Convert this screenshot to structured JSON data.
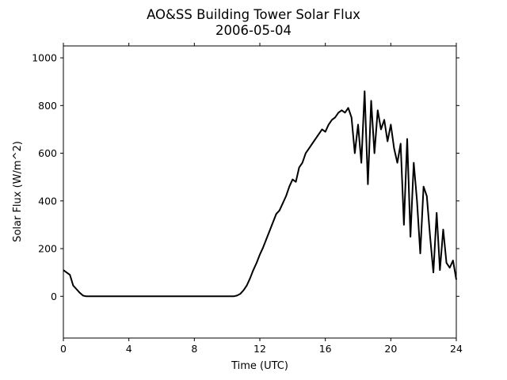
{
  "chart_data": {
    "type": "line",
    "title": "AO&SS Building Tower Solar Flux",
    "subtitle": "2006-05-04",
    "xlabel": "Time (UTC)",
    "ylabel": "Solar Flux (W/m^2)",
    "xlim": [
      0,
      24
    ],
    "xticks": [
      0,
      4,
      8,
      12,
      16,
      20,
      24
    ],
    "ylim": [
      -175,
      1050
    ],
    "yticks": [
      0,
      200,
      400,
      600,
      800,
      1000
    ],
    "grid": false,
    "series": [
      {
        "name": "Solar Flux",
        "color": "#000000",
        "x": [
          0,
          0.2,
          0.4,
          0.6,
          0.8,
          1.0,
          1.2,
          1.4,
          2,
          4,
          6,
          8,
          10,
          10.4,
          10.6,
          10.8,
          11,
          11.2,
          11.4,
          11.6,
          11.8,
          12,
          12.2,
          12.4,
          12.6,
          12.8,
          13,
          13.2,
          13.4,
          13.6,
          13.8,
          14,
          14.2,
          14.4,
          14.6,
          14.8,
          15,
          15.2,
          15.4,
          15.6,
          15.8,
          16,
          16.2,
          16.4,
          16.6,
          16.8,
          17,
          17.2,
          17.4,
          17.6,
          17.8,
          18,
          18.2,
          18.4,
          18.6,
          18.8,
          19,
          19.2,
          19.4,
          19.6,
          19.8,
          20,
          20.2,
          20.4,
          20.6,
          20.8,
          21,
          21.2,
          21.4,
          21.6,
          21.8,
          22,
          22.2,
          22.4,
          22.6,
          22.8,
          23,
          23.2,
          23.4,
          23.6,
          23.8,
          24
        ],
        "values": [
          110,
          100,
          90,
          45,
          30,
          15,
          3,
          0,
          0,
          0,
          0,
          0,
          0,
          0,
          3,
          10,
          25,
          45,
          75,
          110,
          140,
          175,
          205,
          240,
          275,
          310,
          345,
          360,
          390,
          420,
          460,
          490,
          480,
          540,
          560,
          600,
          620,
          640,
          660,
          680,
          700,
          690,
          720,
          740,
          750,
          770,
          780,
          770,
          790,
          750,
          600,
          720,
          560,
          860,
          470,
          820,
          600,
          780,
          700,
          740,
          650,
          720,
          620,
          560,
          640,
          300,
          660,
          250,
          560,
          400,
          180,
          460,
          420,
          250,
          100,
          350,
          110,
          280,
          140,
          120,
          150,
          70
        ]
      }
    ]
  }
}
